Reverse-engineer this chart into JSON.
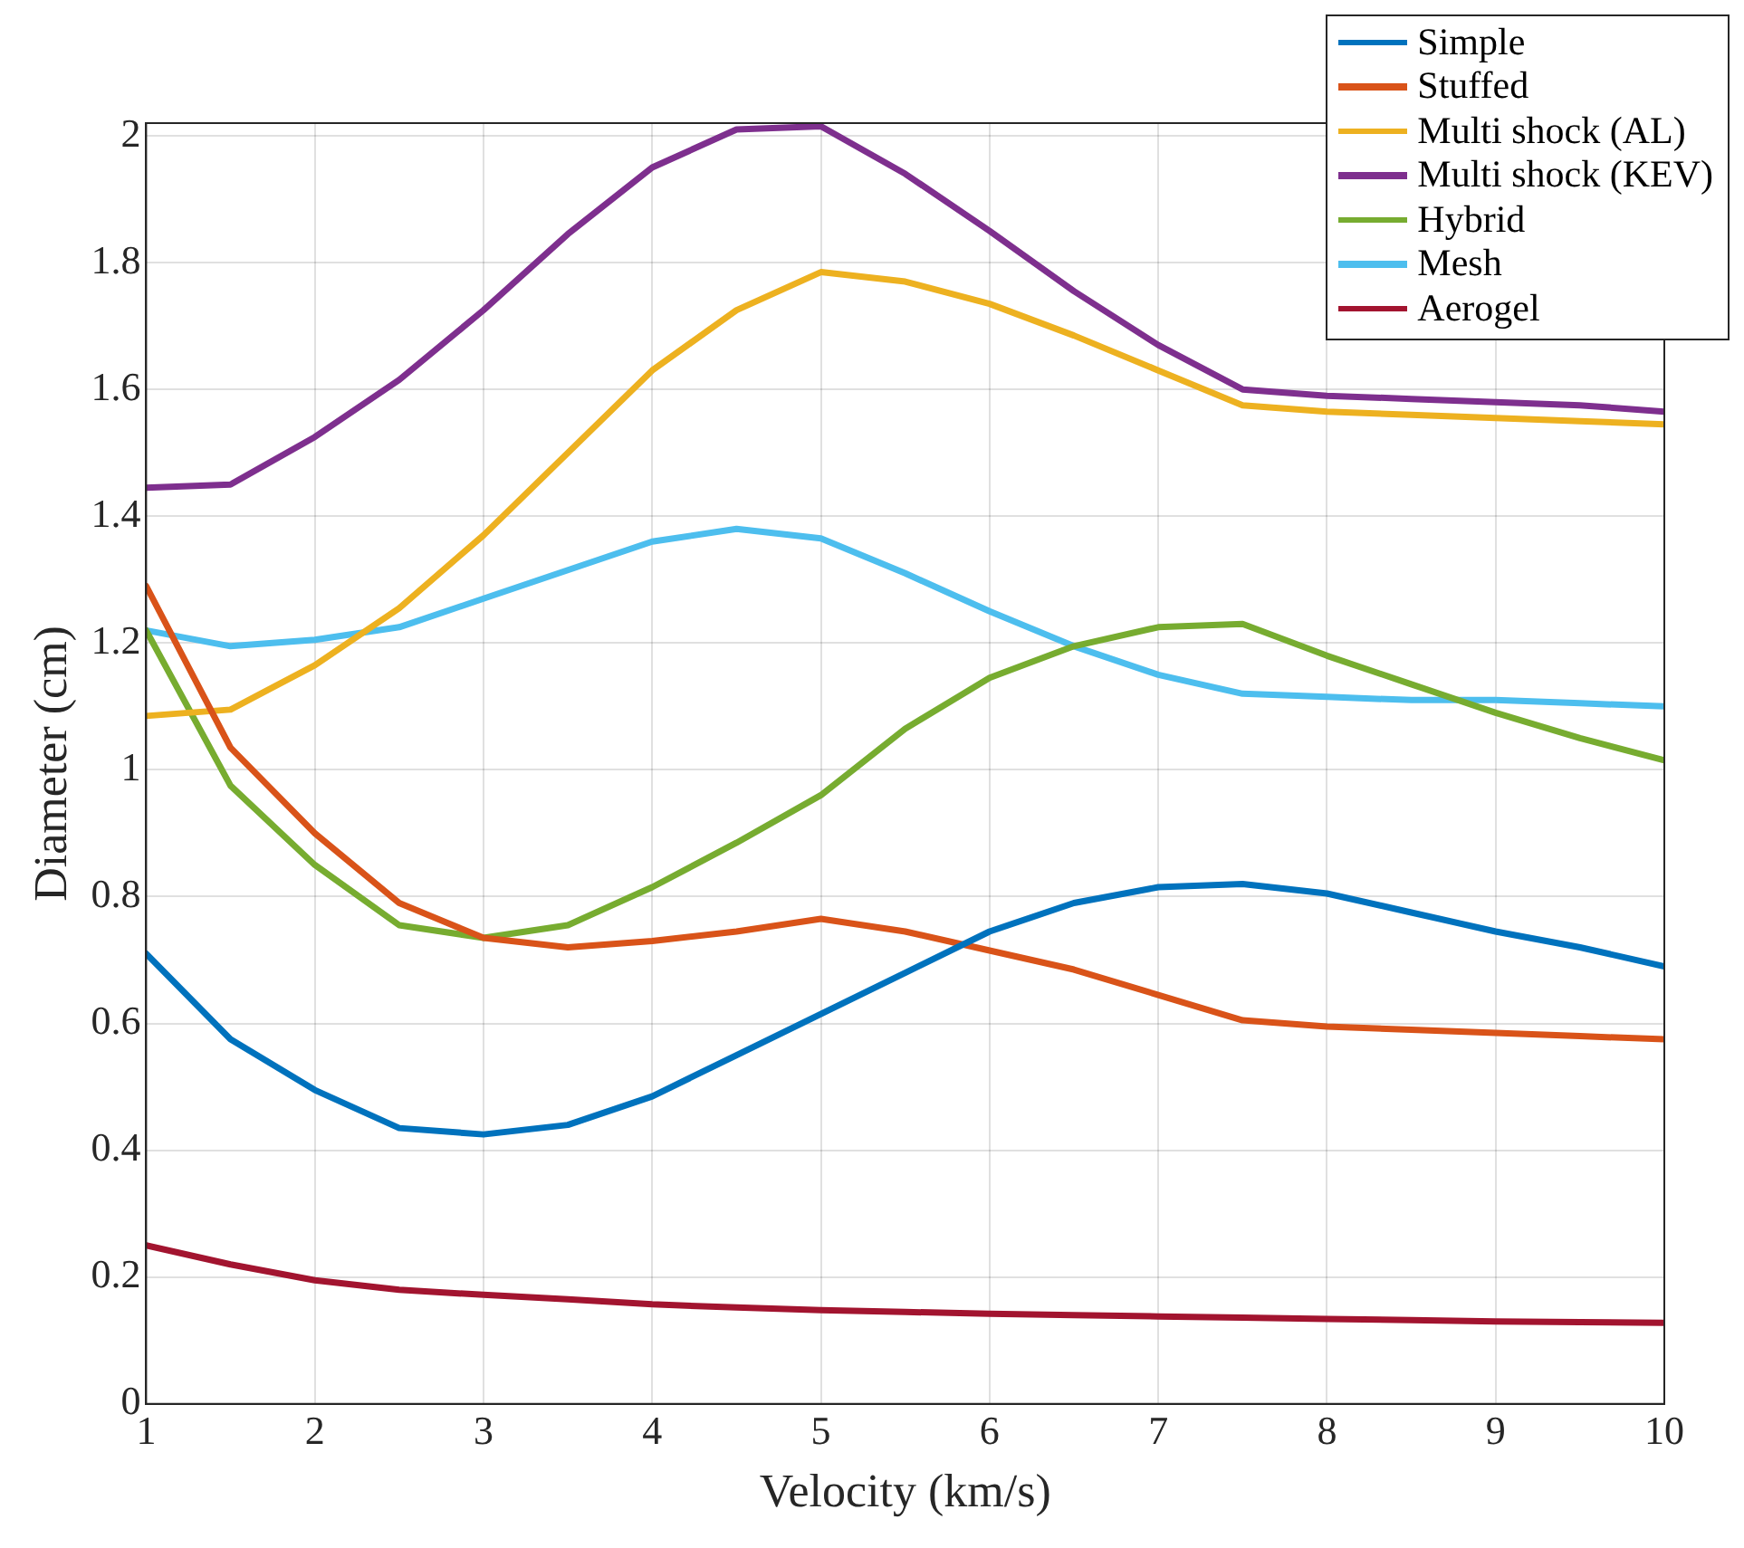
{
  "chart_data": {
    "type": "line",
    "xlabel": "Velocity (km/s)",
    "ylabel": "Diameter (cm)",
    "x": [
      1,
      1.5,
      2,
      2.5,
      3,
      3.5,
      4,
      4.5,
      5,
      5.5,
      6,
      6.5,
      7,
      7.5,
      8,
      8.5,
      9,
      9.5,
      10
    ],
    "xlim": [
      1,
      10
    ],
    "xticks": [
      1,
      2,
      3,
      4,
      5,
      6,
      7,
      8,
      9,
      10
    ],
    "ylim": [
      0,
      2.02
    ],
    "yticks": [
      0,
      0.2,
      0.4,
      0.6,
      0.8,
      1,
      1.2,
      1.4,
      1.6,
      1.8,
      2
    ],
    "grid": true,
    "legend": "top right",
    "marker": "none",
    "line_style": "solid",
    "series": [
      {
        "name": "Simple",
        "color": "#0072bd",
        "values": [
          0.71,
          0.575,
          0.495,
          0.435,
          0.425,
          0.44,
          0.485,
          0.55,
          0.615,
          0.68,
          0.745,
          0.79,
          0.815,
          0.82,
          0.805,
          0.775,
          0.745,
          0.72,
          0.69
        ]
      },
      {
        "name": "Stuffed",
        "color": "#d95319",
        "values": [
          1.29,
          1.035,
          0.9,
          0.79,
          0.735,
          0.72,
          0.73,
          0.745,
          0.765,
          0.745,
          0.715,
          0.685,
          0.645,
          0.605,
          0.595,
          0.59,
          0.585,
          0.58,
          0.575
        ]
      },
      {
        "name": "Multi shock (AL)",
        "color": "#edb120",
        "values": [
          1.085,
          1.095,
          1.165,
          1.255,
          1.37,
          1.5,
          1.63,
          1.725,
          1.785,
          1.77,
          1.735,
          1.685,
          1.63,
          1.575,
          1.565,
          1.56,
          1.555,
          1.55,
          1.545
        ]
      },
      {
        "name": "Multi shock (KEV)",
        "color": "#7e2f8e",
        "values": [
          1.445,
          1.45,
          1.525,
          1.615,
          1.725,
          1.845,
          1.95,
          2.01,
          2.015,
          1.94,
          1.85,
          1.755,
          1.67,
          1.6,
          1.59,
          1.585,
          1.58,
          1.575,
          1.565
        ]
      },
      {
        "name": "Hybrid",
        "color": "#77ac30",
        "values": [
          1.22,
          0.975,
          0.85,
          0.755,
          0.735,
          0.755,
          0.815,
          0.885,
          0.96,
          1.065,
          1.145,
          1.195,
          1.225,
          1.23,
          1.18,
          1.135,
          1.09,
          1.05,
          1.015
        ]
      },
      {
        "name": "Mesh",
        "color": "#4dbeee",
        "values": [
          1.22,
          1.195,
          1.205,
          1.225,
          1.27,
          1.315,
          1.36,
          1.38,
          1.365,
          1.31,
          1.25,
          1.195,
          1.15,
          1.12,
          1.115,
          1.11,
          1.11,
          1.105,
          1.1
        ]
      },
      {
        "name": "Aerogel",
        "color": "#a2142f",
        "values": [
          0.25,
          0.22,
          0.195,
          0.18,
          0.172,
          0.165,
          0.157,
          0.152,
          0.148,
          0.145,
          0.142,
          0.14,
          0.138,
          0.136,
          0.134,
          0.132,
          0.13,
          0.129,
          0.128
        ]
      }
    ]
  }
}
